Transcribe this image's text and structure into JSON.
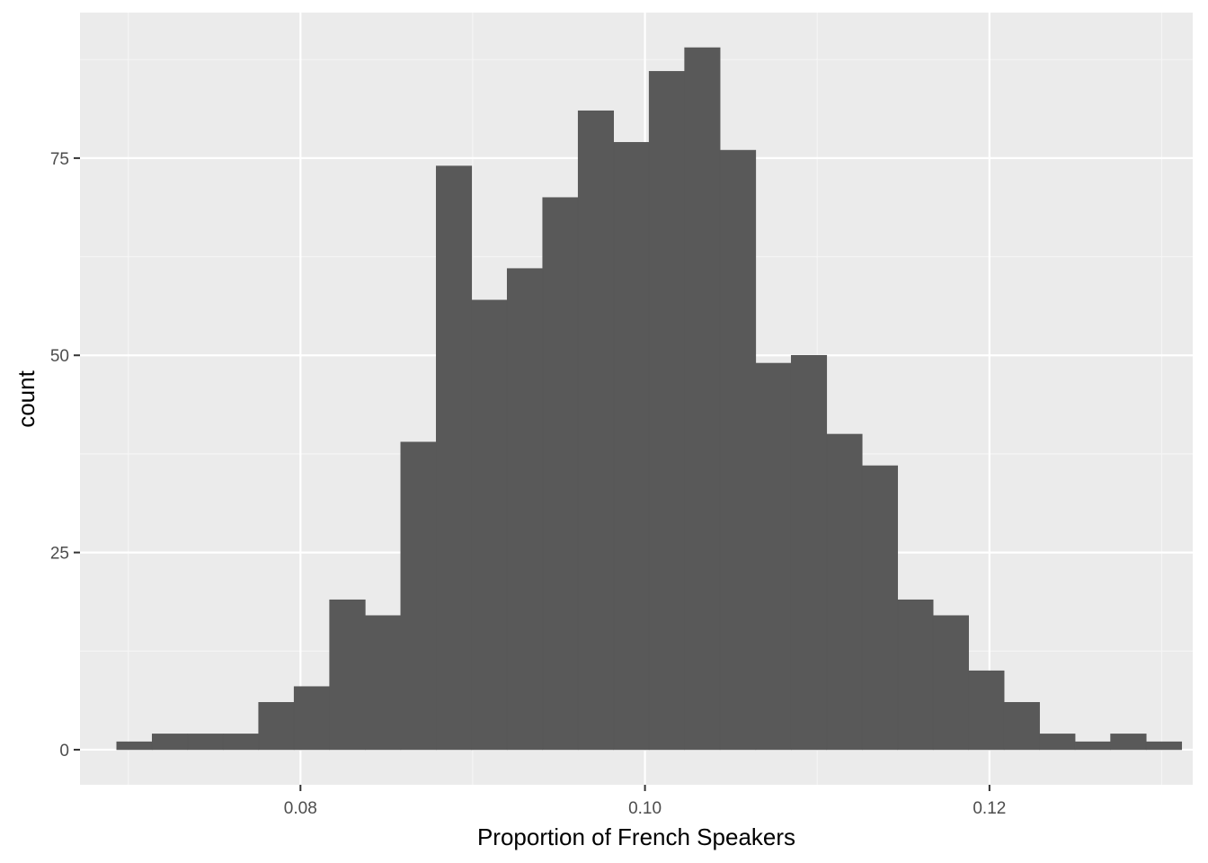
{
  "chart_data": {
    "type": "bar",
    "title": "",
    "xlabel": "Proportion of French Speakers",
    "ylabel": "count",
    "xlim": [
      0.0672,
      0.1318
    ],
    "ylim": [
      -4.45,
      93.45
    ],
    "x_ticks_major": [
      0.08,
      0.1,
      0.12
    ],
    "x_tick_labels": [
      "0.08",
      "0.10",
      "0.12"
    ],
    "x_ticks_minor": [
      0.07,
      0.09,
      0.11,
      0.13
    ],
    "y_ticks_major": [
      0,
      25,
      50,
      75
    ],
    "y_tick_labels": [
      "0",
      "25",
      "50",
      "75"
    ],
    "y_ticks_minor": [
      12.5,
      37.5,
      62.5,
      87.5
    ],
    "grid": true,
    "legend": "none",
    "bin_edges": [
      0.06933,
      0.07139,
      0.07345,
      0.07551,
      0.07757,
      0.07963,
      0.08169,
      0.08376,
      0.08582,
      0.08788,
      0.08994,
      0.092,
      0.09406,
      0.09612,
      0.09818,
      0.10024,
      0.1023,
      0.10436,
      0.10643,
      0.10849,
      0.11055,
      0.11261,
      0.11467,
      0.11673,
      0.11879,
      0.12085,
      0.12291,
      0.12497,
      0.12703,
      0.1291,
      0.13116
    ],
    "counts": [
      1,
      2,
      2,
      2,
      6,
      8,
      19,
      17,
      39,
      74,
      57,
      61,
      70,
      81,
      77,
      86,
      89,
      76,
      49,
      50,
      40,
      36,
      19,
      17,
      10,
      6,
      2,
      1,
      2,
      1
    ],
    "colors": {
      "bar": "#595959",
      "panel_background": "#EBEBEB",
      "grid_major": "#FFFFFF",
      "grid_minor": "#F5F5F5",
      "tick_label": "#4D4D4D",
      "tick_mark": "#333333",
      "axis_title": "#000000",
      "page_background": "#FFFFFF"
    }
  }
}
